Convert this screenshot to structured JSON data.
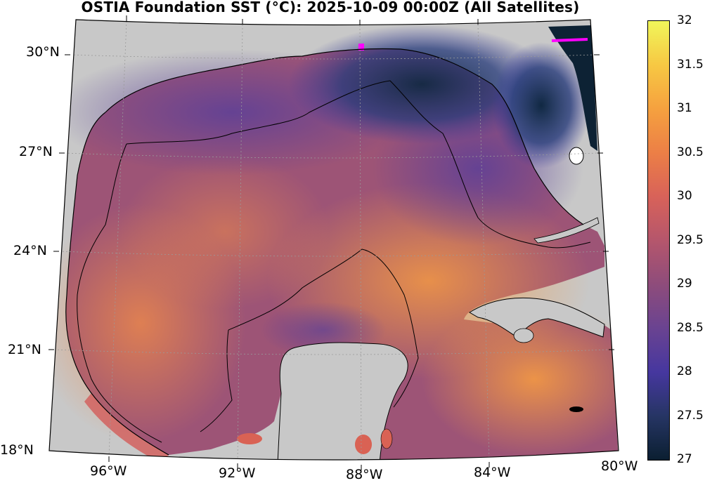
{
  "title": "OSTIA Foundation SST (°C): 2025-10-09 00:00Z (All Satellites)",
  "latitude_labels": [
    "30°N",
    "27°N",
    "24°N",
    "21°N",
    "18°N"
  ],
  "longitude_labels": [
    "96°W",
    "92°W",
    "88°W",
    "84°W",
    "80°W"
  ],
  "colorbar": {
    "ticks": [
      "32",
      "31.5",
      "31",
      "30.5",
      "30",
      "29.5",
      "29",
      "28.5",
      "28",
      "27.5",
      "27"
    ],
    "range": [
      27,
      32
    ],
    "colors": [
      "#0b1f31",
      "#263564",
      "#46379f",
      "#6a4391",
      "#8e4c7b",
      "#b5566c",
      "#d86259",
      "#ec7f46",
      "#f5a13f",
      "#f7c843",
      "#f0f65a"
    ]
  },
  "colors": {
    "land": "#c8c8c8",
    "coastline": "#000000",
    "marker": "#ff00ff"
  }
}
